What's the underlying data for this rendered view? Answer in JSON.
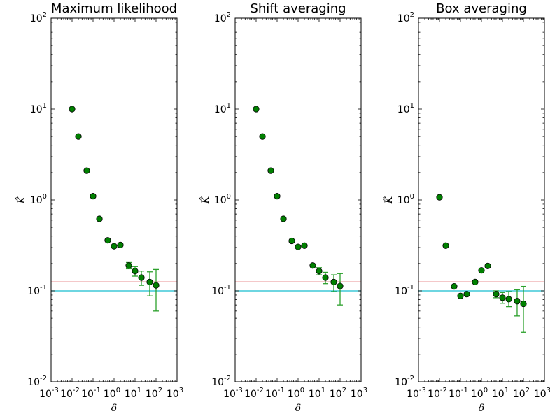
{
  "chart_data": [
    {
      "type": "scatter",
      "title": "Maximum likelihood",
      "xlabel": "δ",
      "ylabel": "K̂",
      "xscale": "log",
      "yscale": "log",
      "xlim": [
        0.001,
        1000
      ],
      "ylim": [
        0.01,
        100
      ],
      "xtick_exponents": [
        "-3",
        "-2",
        "-1",
        "0",
        "1",
        "2",
        "3"
      ],
      "ytick_exponents": [
        "-2",
        "-1",
        "0",
        "1",
        "2"
      ],
      "tick_base": "10",
      "hlines": [
        {
          "y": 0.125,
          "color": "#d62728"
        },
        {
          "y": 0.1,
          "color": "#17becf"
        }
      ],
      "marker_color": "#008000",
      "errorbar_color": "#2ca02c",
      "points": [
        {
          "x": 0.01,
          "y": 10.0
        },
        {
          "x": 0.02,
          "y": 5.0
        },
        {
          "x": 0.05,
          "y": 2.1
        },
        {
          "x": 0.1,
          "y": 1.1
        },
        {
          "x": 0.2,
          "y": 0.62
        },
        {
          "x": 0.5,
          "y": 0.36
        },
        {
          "x": 1.0,
          "y": 0.31
        },
        {
          "x": 2.0,
          "y": 0.32
        },
        {
          "x": 5.0,
          "y": 0.19,
          "ylow": 0.175,
          "yhigh": 0.205
        },
        {
          "x": 10.0,
          "y": 0.165,
          "ylow": 0.145,
          "yhigh": 0.185
        },
        {
          "x": 20.0,
          "y": 0.14,
          "ylow": 0.115,
          "yhigh": 0.165
        },
        {
          "x": 50.0,
          "y": 0.125,
          "ylow": 0.088,
          "yhigh": 0.162
        },
        {
          "x": 100.0,
          "y": 0.115,
          "ylow": 0.06,
          "yhigh": 0.172
        }
      ]
    },
    {
      "type": "scatter",
      "title": "Shift averaging",
      "xlabel": "δ",
      "ylabel": "K̂",
      "xscale": "log",
      "yscale": "log",
      "xlim": [
        0.001,
        1000
      ],
      "ylim": [
        0.01,
        100
      ],
      "xtick_exponents": [
        "-3",
        "-2",
        "-1",
        "0",
        "1",
        "2",
        "3"
      ],
      "ytick_exponents": [
        "-2",
        "-1",
        "0",
        "1",
        "2"
      ],
      "tick_base": "10",
      "hlines": [
        {
          "y": 0.125,
          "color": "#d62728"
        },
        {
          "y": 0.1,
          "color": "#17becf"
        }
      ],
      "marker_color": "#008000",
      "errorbar_color": "#2ca02c",
      "points": [
        {
          "x": 0.01,
          "y": 10.0
        },
        {
          "x": 0.02,
          "y": 5.0
        },
        {
          "x": 0.05,
          "y": 2.1
        },
        {
          "x": 0.1,
          "y": 1.1
        },
        {
          "x": 0.2,
          "y": 0.62
        },
        {
          "x": 0.5,
          "y": 0.355
        },
        {
          "x": 1.0,
          "y": 0.305
        },
        {
          "x": 2.0,
          "y": 0.315
        },
        {
          "x": 5.0,
          "y": 0.19
        },
        {
          "x": 10.0,
          "y": 0.165,
          "ylow": 0.15,
          "yhigh": 0.18
        },
        {
          "x": 20.0,
          "y": 0.14,
          "ylow": 0.12,
          "yhigh": 0.16
        },
        {
          "x": 50.0,
          "y": 0.125,
          "ylow": 0.098,
          "yhigh": 0.15
        },
        {
          "x": 100.0,
          "y": 0.113,
          "ylow": 0.07,
          "yhigh": 0.155
        }
      ]
    },
    {
      "type": "scatter",
      "title": "Box averaging",
      "xlabel": "δ",
      "ylabel": "K̂",
      "xscale": "log",
      "yscale": "log",
      "xlim": [
        0.001,
        1000
      ],
      "ylim": [
        0.01,
        100
      ],
      "xtick_exponents": [
        "-3",
        "-2",
        "-1",
        "0",
        "1",
        "2",
        "3"
      ],
      "ytick_exponents": [
        "-2",
        "-1",
        "0",
        "1",
        "2"
      ],
      "tick_base": "10",
      "hlines": [
        {
          "y": 0.125,
          "color": "#d62728"
        },
        {
          "y": 0.1,
          "color": "#17becf"
        }
      ],
      "marker_color": "#008000",
      "errorbar_color": "#2ca02c",
      "points": [
        {
          "x": 0.01,
          "y": 1.07
        },
        {
          "x": 0.02,
          "y": 0.315
        },
        {
          "x": 0.05,
          "y": 0.112
        },
        {
          "x": 0.1,
          "y": 0.088
        },
        {
          "x": 0.2,
          "y": 0.092
        },
        {
          "x": 0.5,
          "y": 0.125
        },
        {
          "x": 1.0,
          "y": 0.168
        },
        {
          "x": 2.0,
          "y": 0.188
        },
        {
          "x": 5.0,
          "y": 0.092,
          "ylow": 0.084,
          "yhigh": 0.1
        },
        {
          "x": 10.0,
          "y": 0.084,
          "ylow": 0.073,
          "yhigh": 0.096
        },
        {
          "x": 20.0,
          "y": 0.081,
          "ylow": 0.067,
          "yhigh": 0.098
        },
        {
          "x": 50.0,
          "y": 0.077,
          "ylow": 0.053,
          "yhigh": 0.103
        },
        {
          "x": 100.0,
          "y": 0.072,
          "ylow": 0.035,
          "yhigh": 0.112
        }
      ]
    }
  ]
}
